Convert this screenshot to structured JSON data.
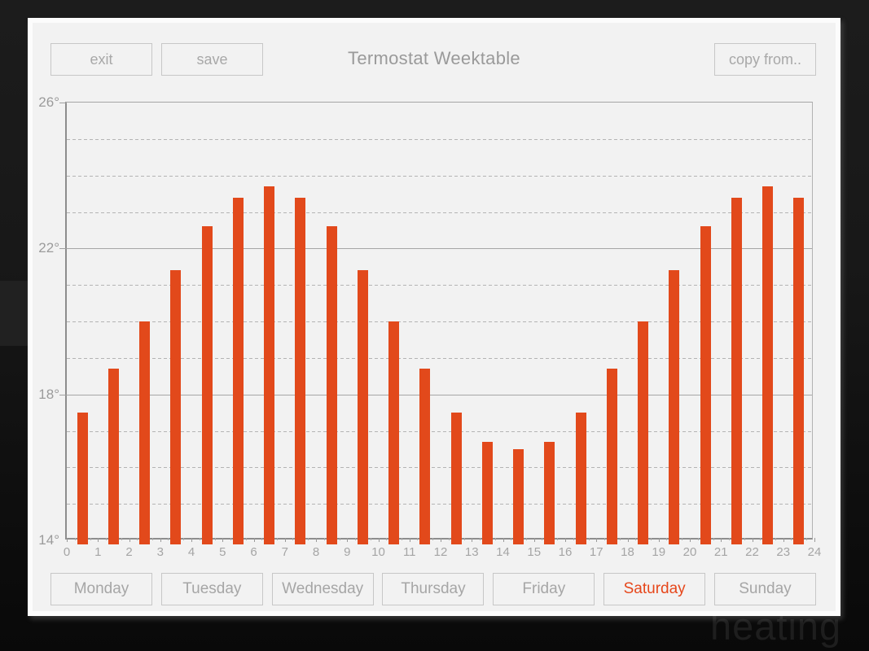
{
  "window": {
    "title": "Termostat Weektable"
  },
  "toolbar": {
    "exit_label": "exit",
    "save_label": "save",
    "copy_from_label": "copy from.."
  },
  "days": {
    "selected": "Saturday",
    "items": [
      {
        "label": "Monday",
        "selected": false
      },
      {
        "label": "Tuesday",
        "selected": false
      },
      {
        "label": "Wednesday",
        "selected": false
      },
      {
        "label": "Thursday",
        "selected": false
      },
      {
        "label": "Friday",
        "selected": false
      },
      {
        "label": "Saturday",
        "selected": true
      },
      {
        "label": "Sunday",
        "selected": false
      }
    ]
  },
  "background": {
    "partial_text": "heating"
  },
  "colors": {
    "accent": "#e6471b",
    "bar": "#e2491b",
    "panel_bg": "#f2f2f2",
    "muted_text": "#9b9b9b"
  },
  "chart_data": {
    "type": "bar",
    "title": "Termostat Weektable",
    "xlabel": "",
    "ylabel": "",
    "categories": [
      0,
      1,
      2,
      3,
      4,
      5,
      6,
      7,
      8,
      9,
      10,
      11,
      12,
      13,
      14,
      15,
      16,
      17,
      18,
      19,
      20,
      21,
      22,
      23
    ],
    "values": [
      17.5,
      18.7,
      20.0,
      21.4,
      22.6,
      23.4,
      23.7,
      23.4,
      22.6,
      21.4,
      20.0,
      18.7,
      17.5,
      16.7,
      16.5,
      16.7,
      17.5,
      18.7,
      20.0,
      21.4,
      22.6,
      23.4,
      23.7,
      23.4
    ],
    "ylim": [
      14,
      26
    ],
    "y_major_lines": [
      14,
      18,
      22,
      26
    ],
    "y_major_labels": [
      "14°",
      "18°",
      "22°",
      "26°"
    ],
    "y_minor_lines": [
      15,
      16,
      17,
      19,
      20,
      21,
      23,
      24,
      25
    ],
    "x_tick_labels": [
      "0",
      "1",
      "2",
      "3",
      "4",
      "5",
      "6",
      "7",
      "8",
      "9",
      "10",
      "11",
      "12",
      "13",
      "14",
      "15",
      "16",
      "17",
      "18",
      "19",
      "20",
      "21",
      "22",
      "23",
      "24"
    ],
    "grid": "solid every 4 degrees, dashed every 1 degree",
    "legend": "none",
    "bar_unit": "degrees Celsius per hour slot"
  }
}
